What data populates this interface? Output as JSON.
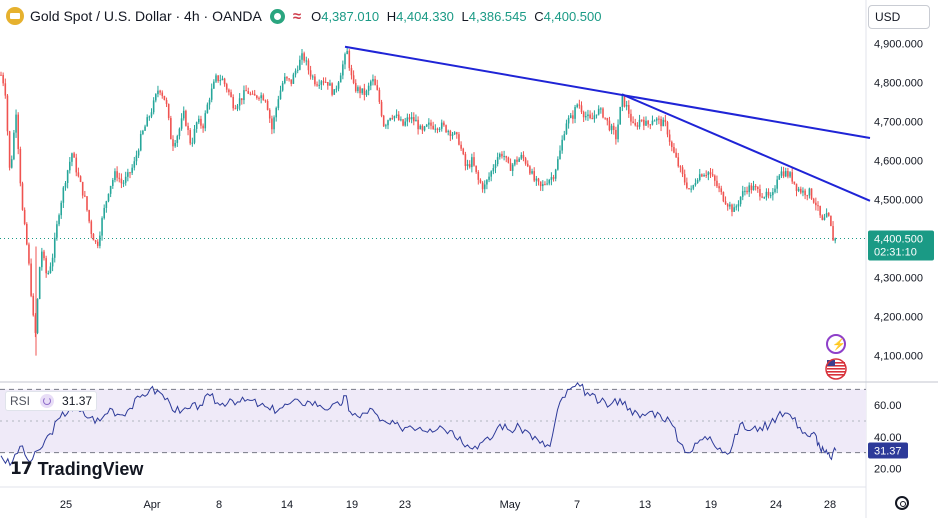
{
  "header": {
    "symbol": "Gold Spot / U.S. Dollar · 4h · OANDA",
    "wave_icon": "≈",
    "ohlc": [
      {
        "key": "O",
        "value": "4,387.010"
      },
      {
        "key": "H",
        "value": "4,404.330"
      },
      {
        "key": "L",
        "value": "4,386.545"
      },
      {
        "key": "C",
        "value": "4,400.500"
      }
    ],
    "currency_button": "USD"
  },
  "rsi_legend": {
    "name": "RSI",
    "value": "31.37"
  },
  "branding": {
    "mark": "17",
    "word": "TradingView"
  },
  "price_badge": {
    "price": "4,400.500",
    "countdown": "02:31:10"
  },
  "rsi_badge": "31.37",
  "colors": {
    "up": "#26a69a",
    "down": "#ef5350",
    "trendline": "#1f24d6",
    "rsi_line": "#2d3a99",
    "rsi_band": "#efeaf8",
    "badge": "#1a9a85"
  },
  "icons": {
    "currency_settings": "lightning-icon",
    "flag": "us-flag-icon",
    "chart_settings": "gear-icon"
  },
  "chart_data": {
    "type": "candlestick",
    "price_axis": {
      "ticks": [
        {
          "value": 4900,
          "label": "4,900.000"
        },
        {
          "value": 4800,
          "label": "4,800.000"
        },
        {
          "value": 4700,
          "label": "4,700.000"
        },
        {
          "value": 4600,
          "label": "4,600.000"
        },
        {
          "value": 4500,
          "label": "4,500.000"
        },
        {
          "value": 4300,
          "label": "4,300.000"
        },
        {
          "value": 4200,
          "label": "4,200.000"
        },
        {
          "value": 4100,
          "label": "4,100.000"
        }
      ],
      "range": [
        4035,
        4935
      ]
    },
    "time_axis": [
      "25",
      "Apr",
      "8",
      "14",
      "19",
      "23",
      "May",
      "7",
      "13",
      "19",
      "24",
      "28"
    ],
    "current_price": 4400.5,
    "price_path": [
      [
        1,
        4820
      ],
      [
        5,
        4790
      ],
      [
        10,
        4560
      ],
      [
        16,
        4730
      ],
      [
        22,
        4480
      ],
      [
        28,
        4360
      ],
      [
        35,
        4140
      ],
      [
        41,
        4380
      ],
      [
        47,
        4300
      ],
      [
        53,
        4360
      ],
      [
        59,
        4470
      ],
      [
        66,
        4560
      ],
      [
        72,
        4620
      ],
      [
        78,
        4560
      ],
      [
        85,
        4500
      ],
      [
        91,
        4420
      ],
      [
        97,
        4380
      ],
      [
        103,
        4460
      ],
      [
        109,
        4530
      ],
      [
        116,
        4570
      ],
      [
        122,
        4540
      ],
      [
        128,
        4560
      ],
      [
        134,
        4590
      ],
      [
        141,
        4660
      ],
      [
        147,
        4700
      ],
      [
        153,
        4740
      ],
      [
        159,
        4790
      ],
      [
        166,
        4750
      ],
      [
        172,
        4640
      ],
      [
        178,
        4670
      ],
      [
        184,
        4720
      ],
      [
        191,
        4640
      ],
      [
        197,
        4700
      ],
      [
        203,
        4690
      ],
      [
        209,
        4760
      ],
      [
        216,
        4810
      ],
      [
        222,
        4810
      ],
      [
        228,
        4780
      ],
      [
        234,
        4740
      ],
      [
        241,
        4760
      ],
      [
        247,
        4780
      ],
      [
        253,
        4760
      ],
      [
        259,
        4770
      ],
      [
        266,
        4760
      ],
      [
        272,
        4680
      ],
      [
        278,
        4760
      ],
      [
        284,
        4810
      ],
      [
        291,
        4800
      ],
      [
        297,
        4840
      ],
      [
        303,
        4870
      ],
      [
        309,
        4830
      ],
      [
        316,
        4800
      ],
      [
        322,
        4810
      ],
      [
        328,
        4800
      ],
      [
        334,
        4770
      ],
      [
        341,
        4830
      ],
      [
        347,
        4880
      ],
      [
        353,
        4790
      ],
      [
        359,
        4780
      ],
      [
        366,
        4770
      ],
      [
        372,
        4810
      ],
      [
        378,
        4770
      ],
      [
        384,
        4690
      ],
      [
        391,
        4720
      ],
      [
        397,
        4710
      ],
      [
        403,
        4690
      ],
      [
        409,
        4710
      ],
      [
        416,
        4700
      ],
      [
        422,
        4670
      ],
      [
        428,
        4690
      ],
      [
        434,
        4690
      ],
      [
        441,
        4690
      ],
      [
        447,
        4680
      ],
      [
        453,
        4670
      ],
      [
        459,
        4650
      ],
      [
        466,
        4580
      ],
      [
        472,
        4600
      ],
      [
        478,
        4550
      ],
      [
        484,
        4530
      ],
      [
        491,
        4570
      ],
      [
        497,
        4610
      ],
      [
        503,
        4620
      ],
      [
        509,
        4580
      ],
      [
        516,
        4600
      ],
      [
        522,
        4610
      ],
      [
        528,
        4590
      ],
      [
        534,
        4550
      ],
      [
        541,
        4530
      ],
      [
        547,
        4550
      ],
      [
        553,
        4560
      ],
      [
        559,
        4610
      ],
      [
        566,
        4700
      ],
      [
        572,
        4710
      ],
      [
        578,
        4750
      ],
      [
        584,
        4720
      ],
      [
        591,
        4700
      ],
      [
        597,
        4730
      ],
      [
        603,
        4720
      ],
      [
        609,
        4690
      ],
      [
        616,
        4660
      ],
      [
        622,
        4760
      ],
      [
        628,
        4730
      ],
      [
        634,
        4680
      ],
      [
        641,
        4710
      ],
      [
        647,
        4690
      ],
      [
        653,
        4710
      ],
      [
        659,
        4700
      ],
      [
        666,
        4690
      ],
      [
        672,
        4630
      ],
      [
        678,
        4590
      ],
      [
        684,
        4550
      ],
      [
        691,
        4520
      ],
      [
        697,
        4560
      ],
      [
        703,
        4570
      ],
      [
        709,
        4570
      ],
      [
        716,
        4540
      ],
      [
        722,
        4510
      ],
      [
        728,
        4490
      ],
      [
        734,
        4470
      ],
      [
        741,
        4510
      ],
      [
        747,
        4530
      ],
      [
        753,
        4530
      ],
      [
        759,
        4520
      ],
      [
        766,
        4510
      ],
      [
        772,
        4500
      ],
      [
        778,
        4570
      ],
      [
        784,
        4570
      ],
      [
        791,
        4560
      ],
      [
        797,
        4530
      ],
      [
        803,
        4520
      ],
      [
        809,
        4520
      ],
      [
        816,
        4490
      ],
      [
        822,
        4440
      ],
      [
        828,
        4460
      ],
      [
        834,
        4390
      ],
      [
        836,
        4400
      ]
    ],
    "trendlines": [
      {
        "from": [
          345,
          4892
        ],
        "to": [
          870,
          4658
        ]
      },
      {
        "from": [
          622,
          4770
        ],
        "to": [
          870,
          4497
        ]
      }
    ],
    "rsi": {
      "name": "RSI",
      "value": 31.37,
      "ticks": [
        {
          "value": 60,
          "label": "60.00"
        },
        {
          "value": 40,
          "label": "40.00"
        },
        {
          "value": 20,
          "label": "20.00"
        }
      ],
      "bands": [
        70,
        30
      ],
      "range": [
        14,
        74
      ],
      "series": [
        [
          1,
          28
        ],
        [
          10,
          22
        ],
        [
          20,
          34
        ],
        [
          30,
          24
        ],
        [
          40,
          32
        ],
        [
          50,
          42
        ],
        [
          60,
          52
        ],
        [
          70,
          58
        ],
        [
          80,
          56
        ],
        [
          90,
          52
        ],
        [
          100,
          50
        ],
        [
          110,
          58
        ],
        [
          120,
          54
        ],
        [
          130,
          58
        ],
        [
          140,
          65
        ],
        [
          150,
          70
        ],
        [
          160,
          68
        ],
        [
          170,
          61
        ],
        [
          180,
          55
        ],
        [
          190,
          58
        ],
        [
          200,
          60
        ],
        [
          210,
          66
        ],
        [
          220,
          60
        ],
        [
          230,
          64
        ],
        [
          240,
          62
        ],
        [
          250,
          63
        ],
        [
          260,
          60
        ],
        [
          270,
          57
        ],
        [
          280,
          58
        ],
        [
          290,
          61
        ],
        [
          300,
          62
        ],
        [
          310,
          62
        ],
        [
          320,
          60
        ],
        [
          330,
          58
        ],
        [
          340,
          60
        ],
        [
          345,
          66
        ],
        [
          350,
          56
        ],
        [
          360,
          52
        ],
        [
          370,
          58
        ],
        [
          380,
          50
        ],
        [
          390,
          48
        ],
        [
          400,
          46
        ],
        [
          410,
          47
        ],
        [
          420,
          46
        ],
        [
          430,
          45
        ],
        [
          440,
          47
        ],
        [
          450,
          44
        ],
        [
          460,
          40
        ],
        [
          470,
          33
        ],
        [
          480,
          36
        ],
        [
          490,
          38
        ],
        [
          500,
          48
        ],
        [
          510,
          44
        ],
        [
          520,
          46
        ],
        [
          530,
          42
        ],
        [
          540,
          36
        ],
        [
          550,
          34
        ],
        [
          560,
          62
        ],
        [
          570,
          70
        ],
        [
          580,
          72
        ],
        [
          590,
          66
        ],
        [
          600,
          62
        ],
        [
          610,
          60
        ],
        [
          620,
          64
        ],
        [
          630,
          58
        ],
        [
          640,
          52
        ],
        [
          650,
          56
        ],
        [
          660,
          54
        ],
        [
          670,
          50
        ],
        [
          680,
          36
        ],
        [
          690,
          30
        ],
        [
          700,
          38
        ],
        [
          710,
          40
        ],
        [
          720,
          33
        ],
        [
          730,
          30
        ],
        [
          740,
          48
        ],
        [
          750,
          44
        ],
        [
          760,
          46
        ],
        [
          770,
          48
        ],
        [
          780,
          56
        ],
        [
          790,
          54
        ],
        [
          800,
          46
        ],
        [
          810,
          40
        ],
        [
          815,
          42
        ],
        [
          820,
          33
        ],
        [
          825,
          30
        ],
        [
          830,
          27
        ],
        [
          836,
          31.37
        ]
      ]
    }
  }
}
